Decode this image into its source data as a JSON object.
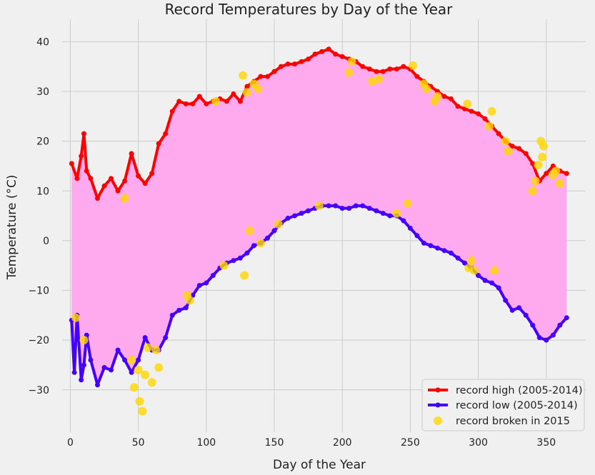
{
  "chart_data": {
    "type": "line",
    "title": "Record Temperatures by Day of the Year",
    "xlabel": "Day of the Year",
    "ylabel": "Temperature (°C)",
    "xlim": [
      -6,
      379
    ],
    "ylim": [
      -38.5,
      44.5
    ],
    "xticks": [
      0,
      50,
      100,
      150,
      200,
      250,
      300,
      350
    ],
    "yticks": [
      -30,
      -20,
      -10,
      0,
      10,
      20,
      30,
      40
    ],
    "grid": true,
    "legend_position": "lower-right",
    "fill_between": {
      "color": "#ffaaee"
    },
    "series": [
      {
        "name": "record high (2005-2014)",
        "color": "#ff0000",
        "x": [
          1,
          5,
          8,
          10,
          12,
          15,
          20,
          25,
          30,
          35,
          40,
          45,
          50,
          55,
          60,
          65,
          70,
          75,
          80,
          85,
          90,
          95,
          100,
          105,
          110,
          115,
          120,
          125,
          130,
          135,
          140,
          145,
          150,
          155,
          160,
          165,
          170,
          175,
          180,
          185,
          190,
          195,
          200,
          205,
          210,
          215,
          220,
          225,
          230,
          235,
          240,
          245,
          250,
          255,
          260,
          265,
          270,
          275,
          280,
          285,
          290,
          295,
          300,
          305,
          310,
          315,
          320,
          325,
          330,
          335,
          340,
          345,
          350,
          355,
          360,
          365
        ],
        "y": [
          15.5,
          12.5,
          17,
          21.5,
          14,
          12.5,
          8.5,
          11,
          12.5,
          10,
          12,
          17.5,
          13,
          11.5,
          13.5,
          19.5,
          21.5,
          26,
          28,
          27.5,
          27.5,
          29,
          27.5,
          28,
          28.5,
          28,
          29.5,
          28,
          31,
          32,
          33,
          33,
          34,
          35,
          35.5,
          35.5,
          36,
          36.5,
          37.5,
          38,
          38.5,
          37.5,
          37,
          36.5,
          36,
          35,
          34.5,
          34,
          34,
          34.5,
          34.5,
          35,
          34.5,
          33,
          32,
          31,
          30,
          29,
          28.5,
          27,
          26.5,
          26,
          25.5,
          24.5,
          23,
          21.5,
          20,
          19,
          18.5,
          17.5,
          15.5,
          12,
          13.5,
          15,
          14,
          13.5
        ]
      },
      {
        "name": "record low (2005-2014)",
        "color": "#4400ff",
        "x": [
          1,
          3,
          5,
          8,
          10,
          12,
          15,
          20,
          25,
          30,
          35,
          40,
          45,
          50,
          55,
          60,
          65,
          70,
          75,
          80,
          85,
          90,
          95,
          100,
          105,
          110,
          115,
          120,
          125,
          130,
          135,
          140,
          145,
          150,
          155,
          160,
          165,
          170,
          175,
          180,
          185,
          190,
          195,
          200,
          205,
          210,
          215,
          220,
          225,
          230,
          235,
          240,
          245,
          250,
          255,
          260,
          265,
          270,
          275,
          280,
          285,
          290,
          295,
          300,
          305,
          310,
          315,
          320,
          325,
          330,
          335,
          340,
          345,
          350,
          355,
          360,
          365
        ],
        "y": [
          -16,
          -26.5,
          -15,
          -28,
          -25,
          -19,
          -24,
          -29,
          -25.5,
          -26,
          -22,
          -24,
          -26.5,
          -24,
          -19.5,
          -22,
          -22,
          -19.5,
          -15,
          -14,
          -13.5,
          -11,
          -9,
          -8.5,
          -7,
          -5.5,
          -4.5,
          -4,
          -3.5,
          -2.5,
          -1,
          -0.5,
          0.5,
          2,
          3.5,
          4.5,
          5,
          5.5,
          6,
          6.5,
          7,
          7,
          7,
          6.5,
          6.5,
          7,
          7,
          6.5,
          6,
          5.5,
          5,
          5,
          4,
          2.5,
          1,
          -0.5,
          -1,
          -1.5,
          -2,
          -2.5,
          -3.5,
          -4.5,
          -5.5,
          -7,
          -8,
          -8.5,
          -9.5,
          -12,
          -14,
          -13.5,
          -15,
          -17,
          -19.5,
          -20,
          -19,
          -17,
          -15.5
        ]
      },
      {
        "name": "record broken in 2015",
        "type": "scatter",
        "color": "#ffd700",
        "x": [
          4,
          10,
          40,
          45,
          47,
          50,
          51,
          53,
          55,
          57,
          60,
          63,
          65,
          86,
          88,
          107,
          113,
          127,
          128,
          130,
          132,
          135,
          138,
          140,
          153,
          183,
          205,
          207,
          222,
          227,
          240,
          248,
          252,
          260,
          262,
          268,
          270,
          292,
          293,
          295,
          297,
          308,
          310,
          312,
          320,
          322,
          340,
          342,
          344,
          346,
          347,
          348,
          355,
          357,
          360
        ],
        "y": [
          -15.5,
          -20,
          8.5,
          -24,
          -29.5,
          -26,
          -32.3,
          -34.3,
          -27,
          -21.5,
          -28.5,
          -22,
          -25.5,
          -11,
          -12,
          28,
          -5,
          33.2,
          -7,
          29.8,
          2,
          31.5,
          30.5,
          -0.5,
          3.3,
          7,
          33.8,
          36,
          32,
          32.5,
          5.5,
          7.5,
          35.2,
          31.5,
          30.5,
          28,
          29,
          27.5,
          -5.5,
          -4,
          -6,
          23,
          26,
          -6,
          20,
          18,
          10,
          12,
          15.2,
          20,
          16.8,
          19,
          13.2,
          14,
          11.5
        ]
      }
    ]
  }
}
